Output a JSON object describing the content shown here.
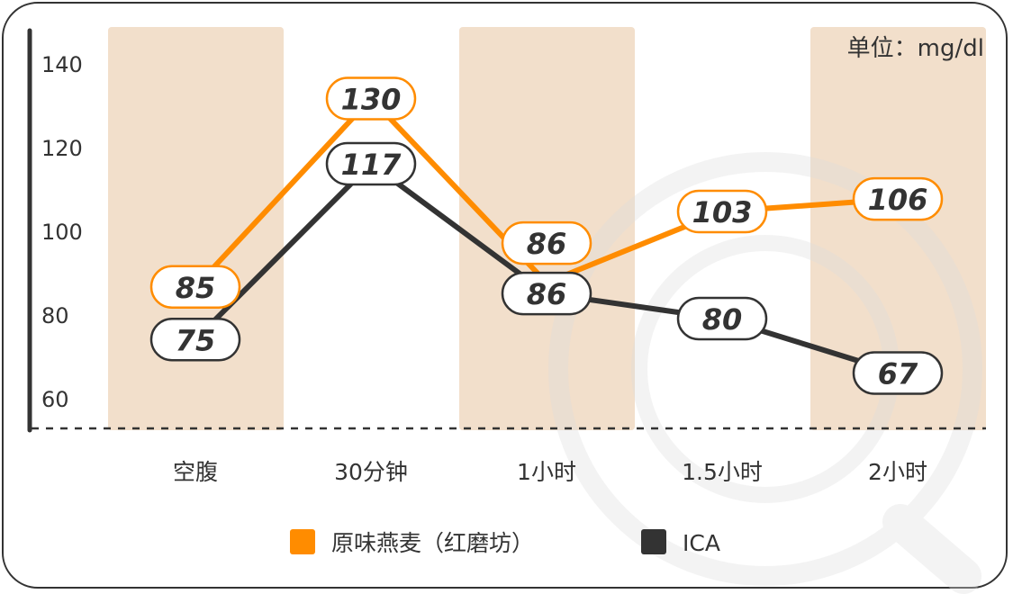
{
  "chart_data": {
    "type": "line",
    "unit_label": "单位：mg/dl",
    "categories": [
      "空腹",
      "30分钟",
      "1小时",
      "1.5小时",
      "2小时"
    ],
    "yticks": [
      60,
      80,
      100,
      120,
      140
    ],
    "ylim": [
      53,
      147
    ],
    "grid": false,
    "legend_position": "bottom",
    "series": [
      {
        "name": "原味燕麦（红磨坊）",
        "color": "#ff8c00",
        "values": [
          85,
          130,
          86,
          103,
          106
        ]
      },
      {
        "name": "ICA",
        "color": "#333333",
        "values": [
          75,
          117,
          86,
          80,
          67
        ]
      }
    ],
    "shaded_band_color": "#f2dfcb"
  }
}
